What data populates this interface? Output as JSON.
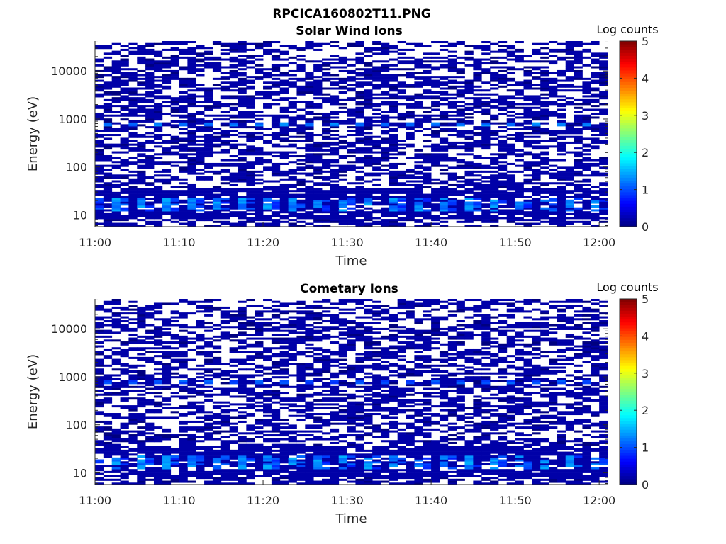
{
  "figure": {
    "title": "RPCICA160802T11.PNG"
  },
  "chart_data": [
    {
      "type": "heatmap",
      "title": "Solar Wind Ions",
      "xlabel": "Time",
      "ylabel": "Energy (eV)",
      "y_scale": "log",
      "ylim": [
        5.7,
        42000
      ],
      "xlim": [
        "11:00",
        "12:01"
      ],
      "x_ticks": [
        "11:00",
        "11:10",
        "11:20",
        "11:30",
        "11:40",
        "11:50",
        "12:00"
      ],
      "y_ticks": [
        "10",
        "100",
        "1000",
        "10000"
      ],
      "colorbar": {
        "label": "Log counts",
        "range": [
          0,
          5
        ],
        "ticks": [
          "0",
          "1",
          "2",
          "3",
          "4",
          "5"
        ],
        "colormap": "jet"
      },
      "time_bins": 61,
      "energy_bins": 96,
      "features": {
        "low_energy_band_eV": [
          8,
          35
        ],
        "low_energy_peak_log_counts": 1.5,
        "line_near_eV": 800,
        "line_log_counts": 1.2,
        "background_log_counts": 0.2
      },
      "grid": false
    },
    {
      "type": "heatmap",
      "title": "Cometary Ions",
      "xlabel": "Time",
      "ylabel": "Energy (eV)",
      "y_scale": "log",
      "ylim": [
        5.7,
        42000
      ],
      "xlim": [
        "11:00",
        "12:01"
      ],
      "x_ticks": [
        "11:00",
        "11:10",
        "11:20",
        "11:30",
        "11:40",
        "11:50",
        "12:00"
      ],
      "y_ticks": [
        "10",
        "100",
        "1000",
        "10000"
      ],
      "colorbar": {
        "label": "Log counts",
        "range": [
          0,
          5
        ],
        "ticks": [
          "0",
          "1",
          "2",
          "3",
          "4",
          "5"
        ],
        "colormap": "jet"
      },
      "time_bins": 61,
      "energy_bins": 96,
      "features": {
        "low_energy_band_eV": [
          8,
          35
        ],
        "low_energy_peak_log_counts": 1.5,
        "line_near_eV": 800,
        "line_log_counts": 1.0,
        "background_log_counts": 0.2
      },
      "grid": false
    }
  ]
}
